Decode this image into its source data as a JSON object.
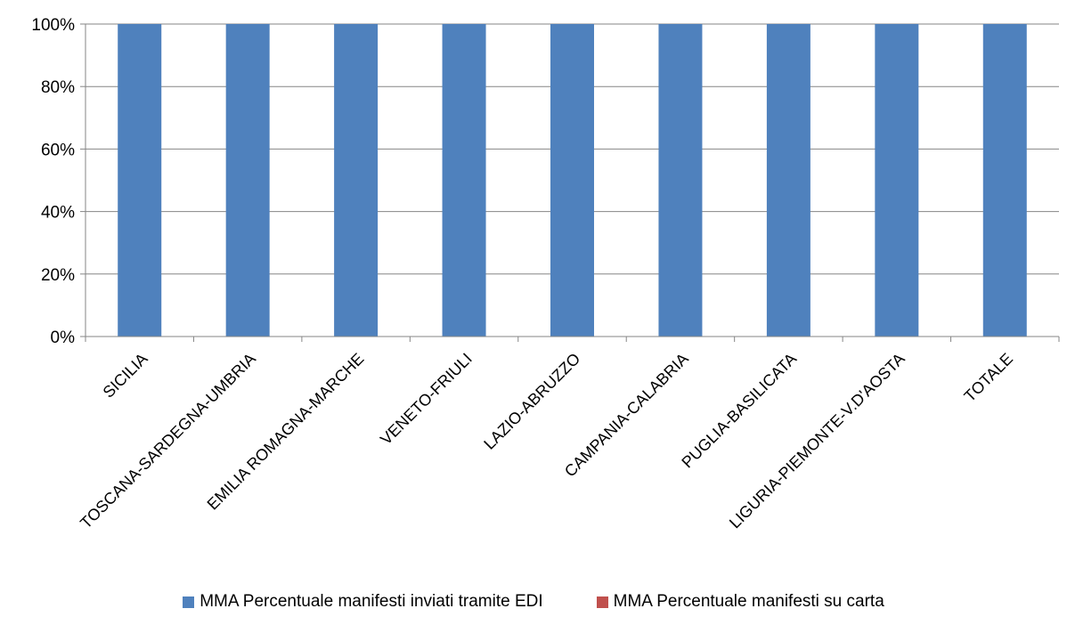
{
  "chart_data": {
    "type": "bar",
    "stacked": true,
    "categories": [
      "SICILIA",
      "TOSCANA-SARDEGNA-UMBRIA",
      "EMILIA ROMAGNA-MARCHE",
      "VENETO-FRIULI",
      "LAZIO-ABRUZZO",
      "CAMPANIA-CALABRIA",
      "PUGLIA-BASILICATA",
      "LIGURIA-PIEMONTE-V.D'AOSTA",
      "TOTALE"
    ],
    "series": [
      {
        "name": "MMA Percentuale  manifesti inviati tramite EDI",
        "color": "#4f81bd",
        "values": [
          100,
          100,
          100,
          100,
          100,
          100,
          100,
          100,
          100
        ]
      },
      {
        "name": "MMA Percentuale  manifesti su carta",
        "color": "#c0504d",
        "values": [
          0,
          0,
          0,
          0,
          0,
          0,
          0,
          0,
          0
        ]
      }
    ],
    "yticks": [
      "0%",
      "20%",
      "40%",
      "60%",
      "80%",
      "100%"
    ],
    "ylim": [
      0,
      100
    ],
    "grid": true,
    "legend_position": "bottom"
  }
}
